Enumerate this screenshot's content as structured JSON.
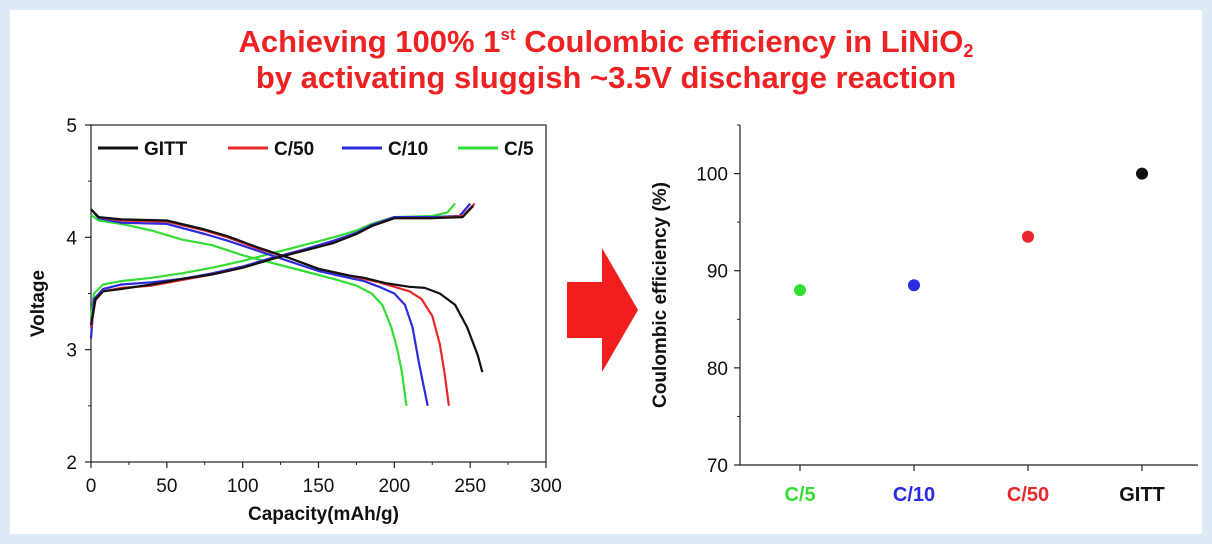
{
  "title": {
    "line1_a": "Achieving 100% 1",
    "line1_sup": "st",
    "line1_b": " Coulombic efficiency in LiNiO",
    "line1_sub": "2",
    "line2": "by activating sluggish ~3.5V discharge reaction"
  },
  "colors": {
    "GITT": "#111111",
    "C/50": "#e8282b",
    "C/10": "#2b2bdf",
    "C/5": "#33dd33",
    "arrow": "#f21d1d"
  },
  "chart_data": [
    {
      "type": "line",
      "title": "",
      "xlabel": "Capacity(mAh/g)",
      "ylabel": "Voltage",
      "xlim": [
        0,
        300
      ],
      "ylim": [
        2,
        5
      ],
      "xticks": [
        0,
        50,
        100,
        150,
        200,
        250,
        300
      ],
      "yticks": [
        2,
        3,
        4,
        5
      ],
      "legend": [
        "GITT",
        "C/50",
        "C/10",
        "C/5"
      ],
      "legend_position": "top",
      "series": [
        {
          "name": "GITT",
          "charge": [
            [
              0,
              3.22
            ],
            [
              3,
              3.45
            ],
            [
              8,
              3.52
            ],
            [
              20,
              3.54
            ],
            [
              40,
              3.58
            ],
            [
              60,
              3.63
            ],
            [
              80,
              3.67
            ],
            [
              100,
              3.73
            ],
            [
              120,
              3.81
            ],
            [
              140,
              3.88
            ],
            [
              160,
              3.95
            ],
            [
              175,
              4.03
            ],
            [
              185,
              4.1
            ],
            [
              200,
              4.17
            ],
            [
              225,
              4.17
            ],
            [
              245,
              4.18
            ],
            [
              252,
              4.28
            ]
          ],
          "discharge": [
            [
              0,
              4.25
            ],
            [
              5,
              4.18
            ],
            [
              20,
              4.16
            ],
            [
              50,
              4.15
            ],
            [
              75,
              4.07
            ],
            [
              90,
              4.01
            ],
            [
              110,
              3.91
            ],
            [
              130,
              3.82
            ],
            [
              150,
              3.72
            ],
            [
              170,
              3.66
            ],
            [
              180,
              3.64
            ],
            [
              195,
              3.59
            ],
            [
              210,
              3.56
            ],
            [
              220,
              3.55
            ],
            [
              230,
              3.5
            ],
            [
              240,
              3.4
            ],
            [
              248,
              3.2
            ],
            [
              255,
              2.95
            ],
            [
              258,
              2.8
            ]
          ]
        },
        {
          "name": "C/50",
          "charge": [
            [
              0,
              3.2
            ],
            [
              3,
              3.44
            ],
            [
              8,
              3.52
            ],
            [
              20,
              3.55
            ],
            [
              40,
              3.57
            ],
            [
              60,
              3.62
            ],
            [
              80,
              3.67
            ],
            [
              100,
              3.73
            ],
            [
              120,
              3.81
            ],
            [
              140,
              3.88
            ],
            [
              160,
              3.95
            ],
            [
              175,
              4.03
            ],
            [
              185,
              4.1
            ],
            [
              200,
              4.17
            ],
            [
              225,
              4.17
            ],
            [
              245,
              4.19
            ],
            [
              253,
              4.3
            ]
          ],
          "discharge": [
            [
              0,
              4.25
            ],
            [
              5,
              4.18
            ],
            [
              20,
              4.15
            ],
            [
              50,
              4.14
            ],
            [
              75,
              4.06
            ],
            [
              90,
              4.0
            ],
            [
              110,
              3.9
            ],
            [
              130,
              3.82
            ],
            [
              150,
              3.72
            ],
            [
              170,
              3.66
            ],
            [
              180,
              3.63
            ],
            [
              190,
              3.6
            ],
            [
              200,
              3.56
            ],
            [
              210,
              3.52
            ],
            [
              218,
              3.45
            ],
            [
              225,
              3.3
            ],
            [
              230,
              3.05
            ],
            [
              233,
              2.8
            ],
            [
              236,
              2.5
            ]
          ]
        },
        {
          "name": "C/10",
          "charge": [
            [
              0,
              3.1
            ],
            [
              2,
              3.45
            ],
            [
              8,
              3.54
            ],
            [
              20,
              3.58
            ],
            [
              40,
              3.6
            ],
            [
              60,
              3.63
            ],
            [
              80,
              3.68
            ],
            [
              100,
              3.74
            ],
            [
              120,
              3.82
            ],
            [
              140,
              3.89
            ],
            [
              160,
              3.97
            ],
            [
              175,
              4.04
            ],
            [
              185,
              4.11
            ],
            [
              200,
              4.18
            ],
            [
              225,
              4.18
            ],
            [
              243,
              4.19
            ],
            [
              250,
              4.3
            ]
          ],
          "discharge": [
            [
              0,
              4.25
            ],
            [
              5,
              4.17
            ],
            [
              20,
              4.13
            ],
            [
              50,
              4.12
            ],
            [
              75,
              4.03
            ],
            [
              90,
              3.97
            ],
            [
              110,
              3.88
            ],
            [
              130,
              3.79
            ],
            [
              150,
              3.7
            ],
            [
              170,
              3.64
            ],
            [
              180,
              3.61
            ],
            [
              190,
              3.56
            ],
            [
              200,
              3.5
            ],
            [
              207,
              3.4
            ],
            [
              212,
              3.2
            ],
            [
              216,
              2.9
            ],
            [
              219,
              2.7
            ],
            [
              222,
              2.5
            ]
          ]
        },
        {
          "name": "C/5",
          "charge": [
            [
              0,
              3.28
            ],
            [
              2,
              3.5
            ],
            [
              8,
              3.58
            ],
            [
              20,
              3.61
            ],
            [
              40,
              3.64
            ],
            [
              60,
              3.68
            ],
            [
              80,
              3.73
            ],
            [
              100,
              3.79
            ],
            [
              120,
              3.86
            ],
            [
              140,
              3.93
            ],
            [
              160,
              4.0
            ],
            [
              175,
              4.06
            ],
            [
              185,
              4.12
            ],
            [
              200,
              4.18
            ],
            [
              225,
              4.19
            ],
            [
              235,
              4.22
            ],
            [
              240,
              4.3
            ]
          ],
          "discharge": [
            [
              0,
              4.2
            ],
            [
              5,
              4.15
            ],
            [
              20,
              4.12
            ],
            [
              40,
              4.06
            ],
            [
              60,
              3.98
            ],
            [
              80,
              3.93
            ],
            [
              100,
              3.84
            ],
            [
              120,
              3.77
            ],
            [
              140,
              3.7
            ],
            [
              160,
              3.63
            ],
            [
              175,
              3.57
            ],
            [
              185,
              3.5
            ],
            [
              192,
              3.4
            ],
            [
              198,
              3.2
            ],
            [
              202,
              3.0
            ],
            [
              205,
              2.8
            ],
            [
              208,
              2.5
            ]
          ]
        }
      ]
    },
    {
      "type": "scatter",
      "title": "",
      "xlabel": "",
      "ylabel": "Coulombic efficiency (%)",
      "categories": [
        "C/5",
        "C/10",
        "C/50",
        "GITT"
      ],
      "values": [
        88.0,
        88.5,
        93.5,
        100.0
      ],
      "ylim": [
        70,
        105
      ],
      "yticks": [
        70,
        80,
        90,
        100
      ]
    }
  ]
}
